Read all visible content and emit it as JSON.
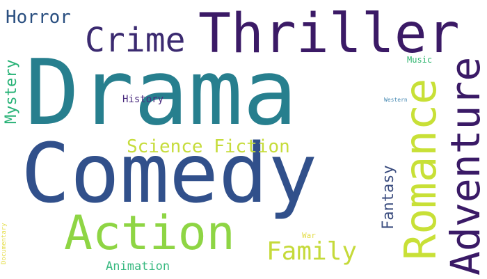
{
  "words": [
    {
      "key": "drama",
      "text": "Drama",
      "color": "#277f8e"
    },
    {
      "key": "comedy",
      "text": "Comedy",
      "color": "#31508b"
    },
    {
      "key": "thriller",
      "text": "Thriller",
      "color": "#3b1a66"
    },
    {
      "key": "action",
      "text": "Action",
      "color": "#8ed544"
    },
    {
      "key": "romance",
      "text": "Romance",
      "color": "#c8e037"
    },
    {
      "key": "adventure",
      "text": "Adventure",
      "color": "#3a1a66"
    },
    {
      "key": "crime",
      "text": "Crime",
      "color": "#3b2a70"
    },
    {
      "key": "horror",
      "text": "Horror",
      "color": "#2a4f80"
    },
    {
      "key": "mystery",
      "text": "Mystery",
      "color": "#27b276"
    },
    {
      "key": "science_fiction",
      "text": "Science Fiction",
      "color": "#c6dc3b"
    },
    {
      "key": "family",
      "text": "Family",
      "color": "#c5da3a"
    },
    {
      "key": "fantasy",
      "text": "Fantasy",
      "color": "#3b4d7f"
    },
    {
      "key": "animation",
      "text": "Animation",
      "color": "#38b980"
    },
    {
      "key": "history",
      "text": "History",
      "color": "#4a2b7f"
    },
    {
      "key": "music",
      "text": "Music",
      "color": "#2fb56f"
    },
    {
      "key": "western",
      "text": "Western",
      "color": "#4a8bb4"
    },
    {
      "key": "war",
      "text": "War",
      "color": "#e4dd4a"
    },
    {
      "key": "documentary",
      "text": "Documentary",
      "color": "#e4dd4a"
    }
  ]
}
